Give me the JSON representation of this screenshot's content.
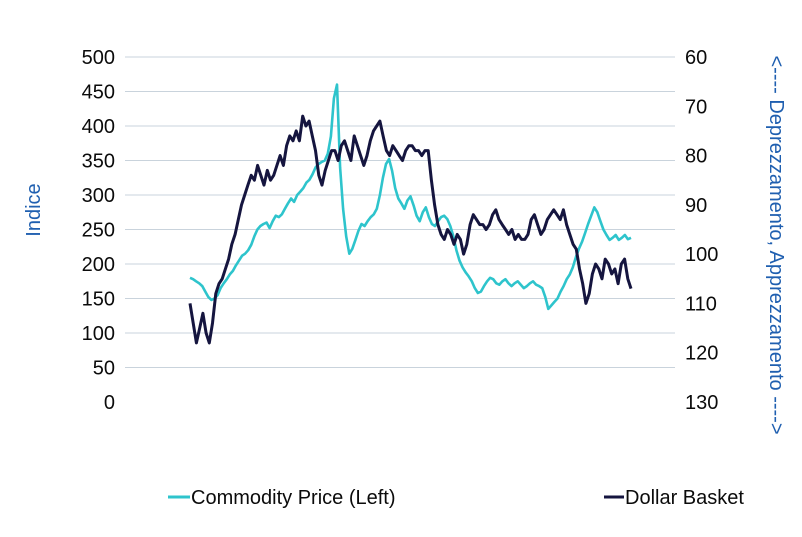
{
  "chart_data": {
    "type": "line",
    "left_axis": {
      "label": "Indice",
      "ylim": [
        0,
        500
      ],
      "ticks": [
        "0",
        "50",
        "100",
        "150",
        "200",
        "250",
        "300",
        "350",
        "400",
        "450",
        "500"
      ]
    },
    "right_axis": {
      "label": "<---- Deprezzamento, Apprezzamento ---->",
      "ylim": [
        130,
        60
      ],
      "reversed": true,
      "ticks": [
        "60",
        "70",
        "80",
        "90",
        "100",
        "110",
        "120",
        "130"
      ]
    },
    "gridlines": true,
    "legend_position": "bottom",
    "series": [
      {
        "name": "Commodity Price (Left)",
        "axis": "left",
        "color": "#2ec4cc",
        "values": [
          180,
          178,
          175,
          172,
          168,
          160,
          152,
          148,
          150,
          155,
          165,
          172,
          178,
          185,
          190,
          198,
          205,
          212,
          215,
          220,
          228,
          240,
          250,
          255,
          258,
          260,
          252,
          262,
          270,
          268,
          272,
          280,
          288,
          295,
          290,
          300,
          305,
          310,
          318,
          322,
          330,
          340,
          345,
          348,
          350,
          360,
          385,
          440,
          460,
          340,
          280,
          240,
          215,
          222,
          235,
          248,
          258,
          255,
          262,
          268,
          272,
          280,
          300,
          325,
          345,
          352,
          335,
          310,
          295,
          288,
          280,
          292,
          298,
          285,
          270,
          262,
          275,
          282,
          268,
          258,
          255,
          262,
          268,
          270,
          265,
          255,
          240,
          220,
          205,
          195,
          188,
          182,
          175,
          165,
          158,
          160,
          168,
          175,
          180,
          178,
          172,
          170,
          175,
          178,
          172,
          168,
          172,
          175,
          170,
          165,
          168,
          172,
          175,
          170,
          168,
          165,
          152,
          135,
          140,
          145,
          150,
          160,
          168,
          178,
          185,
          195,
          210,
          222,
          232,
          245,
          258,
          270,
          282,
          275,
          262,
          250,
          242,
          235,
          238,
          242,
          235,
          238,
          242,
          236,
          238
        ]
      },
      {
        "name": "Dollar Basket",
        "axis": "right",
        "color": "#15153f",
        "values": [
          110,
          114,
          118,
          115,
          112,
          116,
          118,
          114,
          108,
          106,
          105,
          103,
          101,
          98,
          96,
          93,
          90,
          88,
          86,
          84,
          85,
          82,
          84,
          86,
          83,
          85,
          84,
          82,
          80,
          82,
          78,
          76,
          77,
          75,
          77,
          72,
          74,
          73,
          76,
          79,
          84,
          86,
          83,
          81,
          79,
          79,
          81,
          78,
          77,
          79,
          81,
          76,
          78,
          80,
          82,
          80,
          77,
          75,
          74,
          73,
          76,
          79,
          80,
          78,
          79,
          80,
          81,
          79,
          78,
          78,
          79,
          79,
          80,
          79,
          79,
          85,
          90,
          94,
          96,
          97,
          95,
          96,
          98,
          96,
          97,
          100,
          98,
          94,
          92,
          93,
          94,
          94,
          95,
          94,
          92,
          91,
          93,
          94,
          95,
          96,
          95,
          97,
          96,
          97,
          97,
          96,
          93,
          92,
          94,
          96,
          95,
          93,
          92,
          91,
          92,
          93,
          91,
          94,
          96,
          98,
          99,
          103,
          106,
          110,
          108,
          104,
          102,
          103,
          105,
          101,
          102,
          104,
          103,
          106,
          102,
          101,
          105,
          107
        ]
      }
    ]
  }
}
